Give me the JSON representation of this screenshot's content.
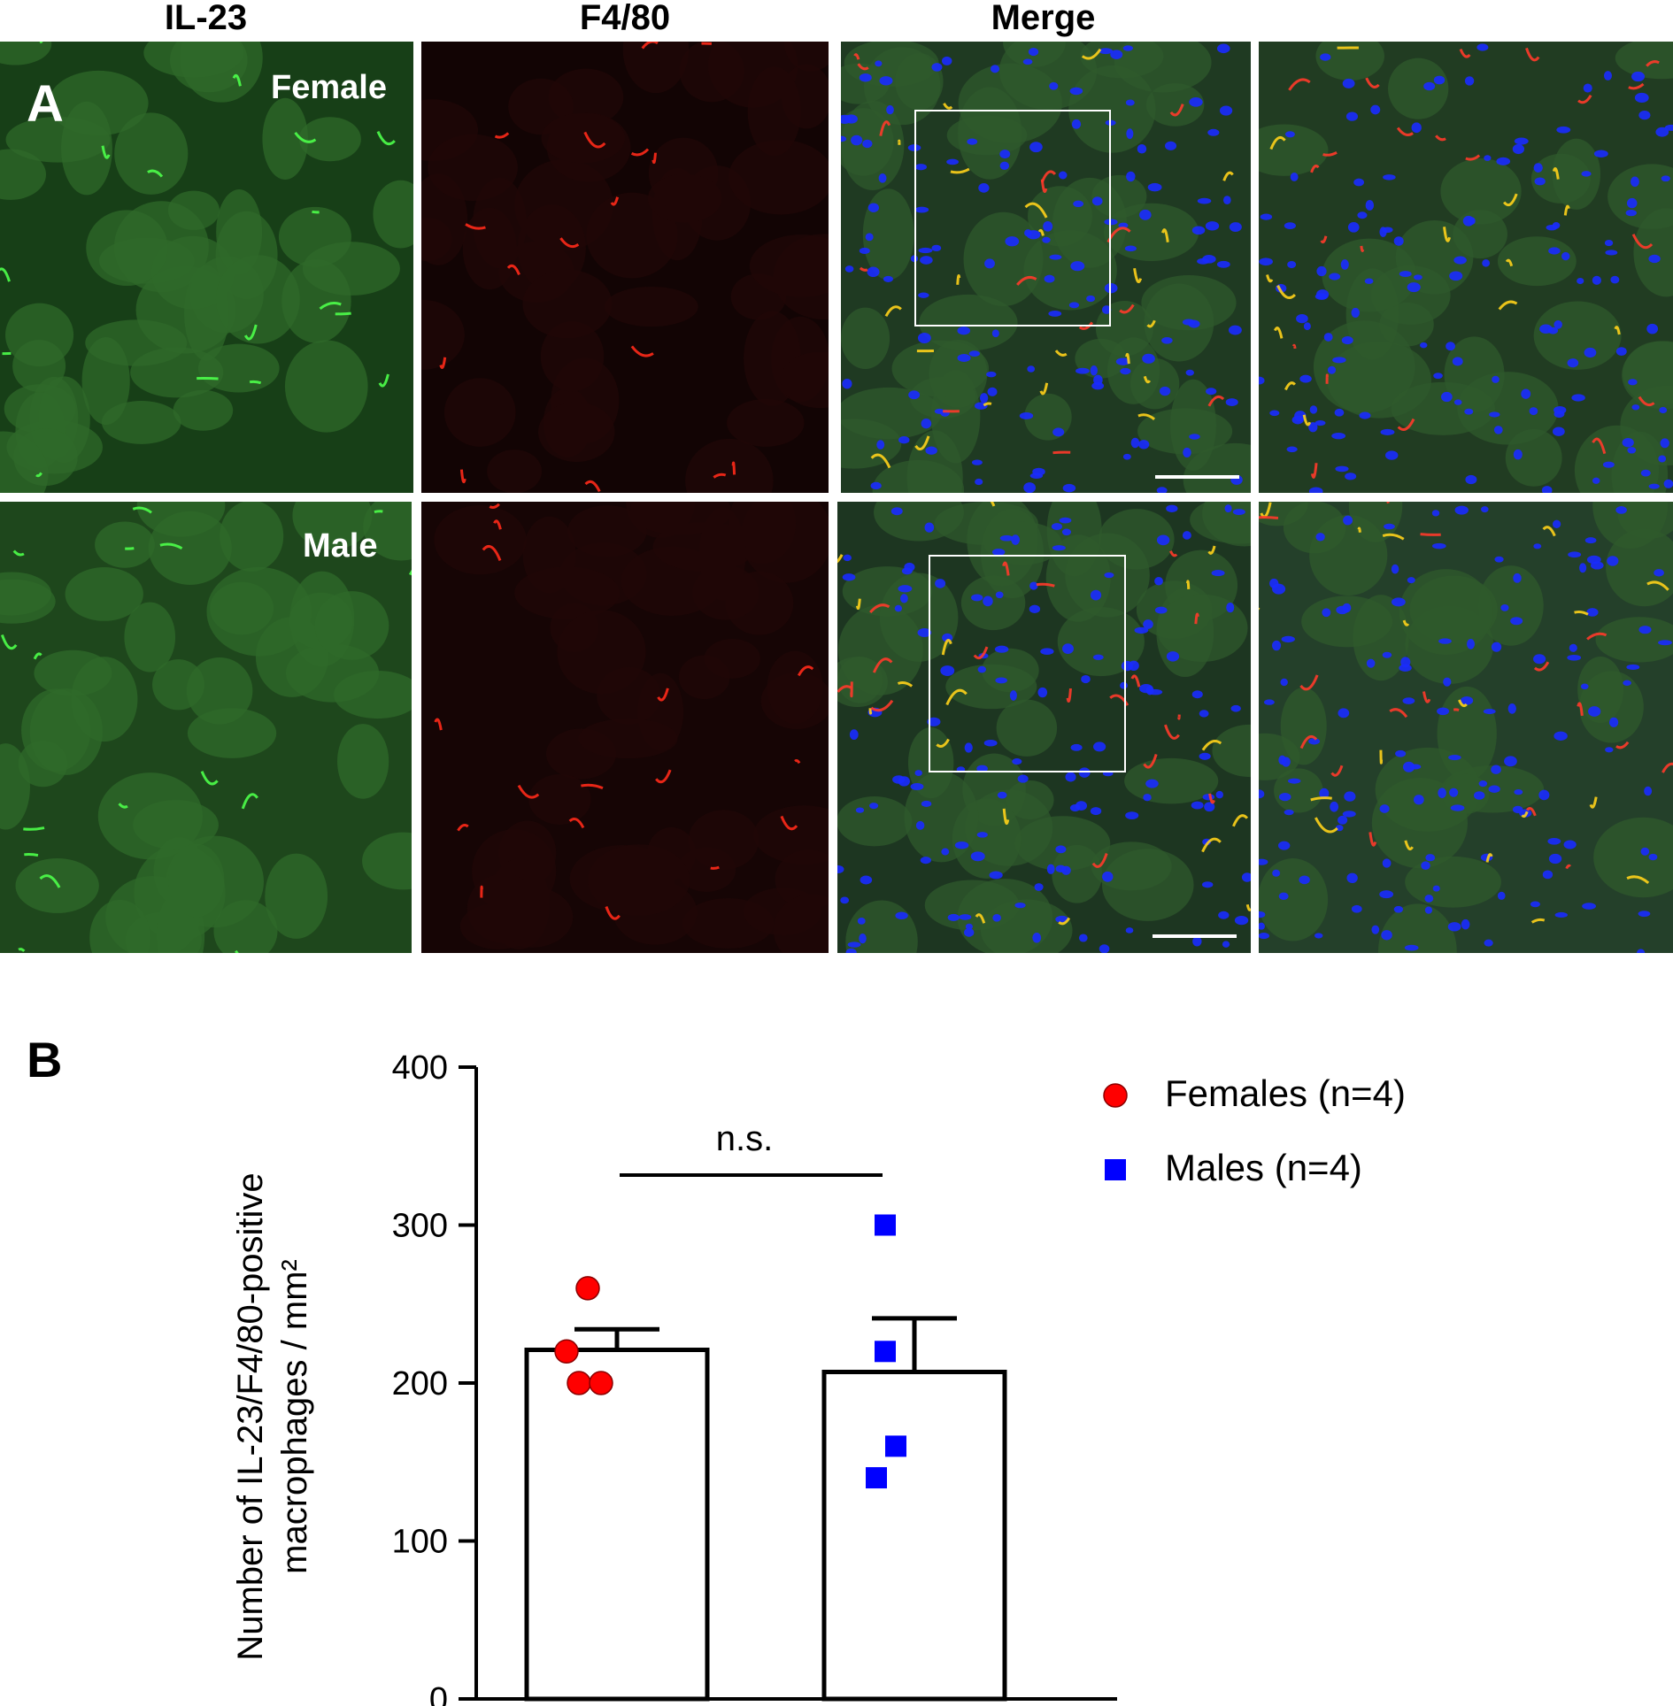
{
  "panel_a": {
    "letter": "A",
    "columns": [
      {
        "label": "IL-23",
        "color": "#4e9a32"
      },
      {
        "label": "F4/80",
        "color": "#ee2a1a"
      },
      {
        "label": "Merge",
        "color": "#666666"
      }
    ],
    "rows": [
      {
        "label": "Female"
      },
      {
        "label": "Male"
      }
    ]
  },
  "panel_b": {
    "letter": "B"
  },
  "chart_data": {
    "type": "bar",
    "categories": [
      "Females",
      "Males"
    ],
    "values": [
      221,
      207
    ],
    "error": [
      13,
      34
    ],
    "points": [
      {
        "group": "Females",
        "values": [
          260,
          220,
          200,
          200
        ],
        "color": "#ff0000",
        "marker": "circle"
      },
      {
        "group": "Males",
        "values": [
          300,
          220,
          160,
          140
        ],
        "color": "#0000ff",
        "marker": "square"
      }
    ],
    "legend": [
      {
        "label": "Females (n=4)",
        "color": "#ff0000",
        "marker": "circle"
      },
      {
        "label": "Males (n=4)",
        "color": "#0000ff",
        "marker": "square"
      }
    ],
    "legend_position": "top-right",
    "ylabel_line1": "Number of IL-23/F4/80-positive",
    "ylabel_line2": "macrophages / mm²",
    "xlabel": "",
    "ylim": [
      0,
      400
    ],
    "yticks": [
      0,
      100,
      200,
      300,
      400
    ],
    "annotation": "n.s."
  }
}
